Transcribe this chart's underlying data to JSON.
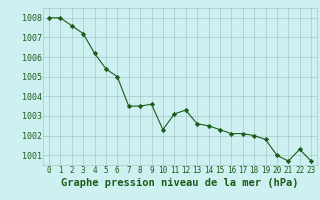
{
  "x": [
    0,
    1,
    2,
    3,
    4,
    5,
    6,
    7,
    8,
    9,
    10,
    11,
    12,
    13,
    14,
    15,
    16,
    17,
    18,
    19,
    20,
    21,
    22,
    23
  ],
  "y": [
    1008.0,
    1008.0,
    1007.6,
    1007.2,
    1006.2,
    1005.4,
    1005.0,
    1003.5,
    1003.5,
    1003.6,
    1002.3,
    1003.1,
    1003.3,
    1002.6,
    1002.5,
    1002.3,
    1002.1,
    1002.1,
    1002.0,
    1001.8,
    1001.0,
    1000.7,
    1001.3,
    1000.7
  ],
  "ylim": [
    1000.5,
    1008.5
  ],
  "yticks": [
    1001,
    1002,
    1003,
    1004,
    1005,
    1006,
    1007,
    1008
  ],
  "xlim": [
    -0.5,
    23.5
  ],
  "xticks": [
    0,
    1,
    2,
    3,
    4,
    5,
    6,
    7,
    8,
    9,
    10,
    11,
    12,
    13,
    14,
    15,
    16,
    17,
    18,
    19,
    20,
    21,
    22,
    23
  ],
  "xlabel": "Graphe pression niveau de la mer (hPa)",
  "line_color": "#1a5c1a",
  "marker": "D",
  "marker_size": 2.2,
  "bg_color": "#cff0f0",
  "grid_color": "#a8c8c8",
  "tick_color": "#1a5c1a",
  "label_color": "#1a5c1a",
  "xlabel_fontsize": 7.5,
  "xtick_fontsize": 5.5,
  "ytick_fontsize": 6.0,
  "linewidth": 0.8
}
